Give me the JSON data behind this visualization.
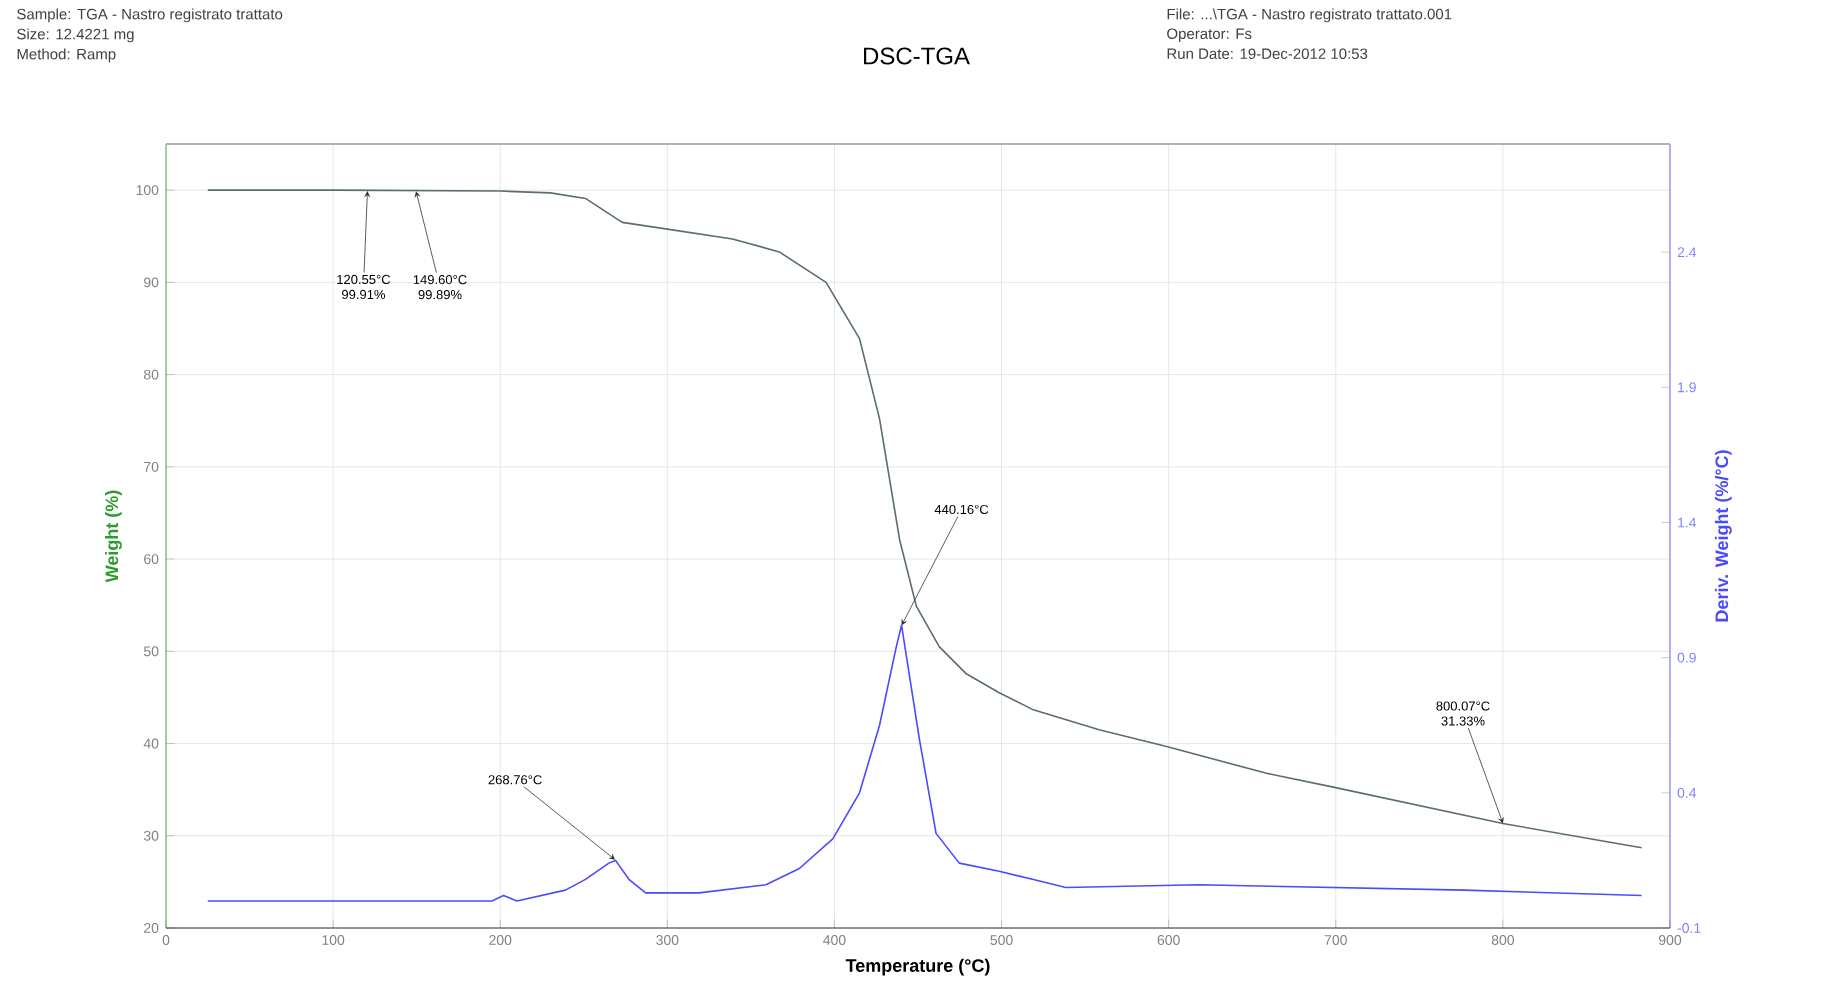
{
  "chart_data": {
    "type": "line",
    "title": "DSC-TGA",
    "xlabel": "Temperature (°C)",
    "ylabel": "Weight (%)",
    "y2label": "Deriv. Weight (%/°C)",
    "xlim": [
      0,
      900
    ],
    "xticks": [
      0,
      100,
      200,
      300,
      400,
      500,
      600,
      700,
      800,
      900
    ],
    "ylim": [
      20,
      105
    ],
    "yticks": [
      20,
      30,
      40,
      50,
      60,
      70,
      80,
      90,
      100
    ],
    "y2lim": [
      -0.1,
      2.8
    ],
    "y2ticks": [
      -0.1,
      0.4,
      0.9,
      1.4,
      1.9,
      2.4
    ],
    "grid": true,
    "series": [
      {
        "color": "#5a7060",
        "x": [
          25,
          100,
          200,
          230,
          251,
          273,
          299,
          339,
          367,
          395,
          415,
          427,
          439,
          449,
          462.7,
          478.6,
          498.6,
          518.5,
          558.4,
          598.2,
          658,
          697.8,
          800,
          883
        ],
        "values": [
          100,
          100,
          99.9,
          99.7,
          99.1,
          96.5,
          95.8,
          94.7,
          93.3,
          90.0,
          83.9,
          75.2,
          62.1,
          54.9,
          50.5,
          47.6,
          45.5,
          43.7,
          41.5,
          39.7,
          36.8,
          35.3,
          31.33,
          28.7
        ]
      },
      {
        "color": "#4a4aff",
        "axis": "y2",
        "x": [
          25,
          99,
          195,
          202,
          210,
          239,
          251,
          265,
          269,
          277,
          287,
          319,
          359,
          379,
          399,
          415,
          427,
          437,
          440.16,
          450.8,
          460.8,
          474.7,
          498.6,
          518.5,
          538.4,
          618,
          777,
          883
        ],
        "values": [
          0.0,
          0.0,
          0.0,
          0.02,
          0.0,
          0.04,
          0.08,
          0.14,
          0.15,
          0.08,
          0.03,
          0.03,
          0.06,
          0.12,
          0.23,
          0.4,
          0.65,
          0.94,
          1.02,
          0.6,
          0.25,
          0.14,
          0.11,
          0.08,
          0.05,
          0.06,
          0.04,
          0.02
        ]
      }
    ],
    "annotations": [
      "Sample: TGA - Nastro registrato trattato",
      "Size: 12.4221 mg",
      "Method: Ramp",
      "File: ...\\TGA - Nastro registrato trattato.001",
      "Operator: Fs",
      "Run Date: 19-Dec-2012 10:53",
      {
        "text": "120.55°C 99.91%",
        "x": 120.55,
        "y": 99.91
      },
      {
        "text": "149.60°C 99.89%",
        "x": 149.6,
        "y": 99.89
      },
      {
        "text": "268.76°C",
        "x": 268.76,
        "y": 27.4
      },
      {
        "text": "440.16°C",
        "x": 440.16,
        "y": 52.8
      },
      {
        "text": "800.07°C 31.33%",
        "x": 800.07,
        "y": 31.33
      }
    ]
  }
}
